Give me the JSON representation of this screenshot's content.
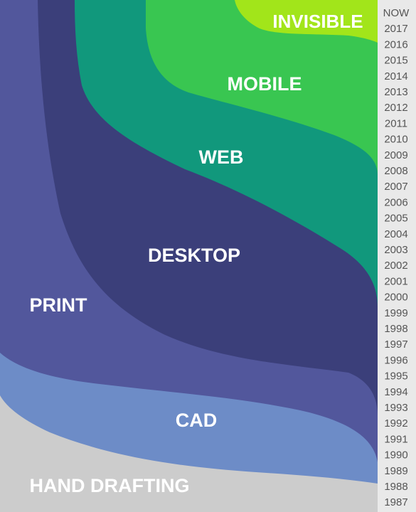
{
  "bands": [
    {
      "key": "hand_drafting",
      "label": "HAND DRAFTING",
      "color": "#cccccc"
    },
    {
      "key": "cad",
      "label": "CAD",
      "color": "#6d8cc7"
    },
    {
      "key": "print",
      "label": "PRINT",
      "color": "#52579c"
    },
    {
      "key": "desktop",
      "label": "DESKTOP",
      "color": "#3b3f7a"
    },
    {
      "key": "web",
      "label": "WEB",
      "color": "#11987c"
    },
    {
      "key": "mobile",
      "label": "MOBILE",
      "color": "#39c651"
    },
    {
      "key": "invisible",
      "label": "INVISIBLE",
      "color": "#a2e51a"
    }
  ],
  "years": [
    "NOW",
    "2017",
    "2016",
    "2015",
    "2014",
    "2013",
    "2012",
    "2011",
    "2010",
    "2009",
    "2008",
    "2007",
    "2006",
    "2005",
    "2004",
    "2003",
    "2002",
    "2001",
    "2000",
    "1999",
    "1998",
    "1997",
    "1996",
    "1995",
    "1994",
    "1993",
    "1992",
    "1991",
    "1990",
    "1989",
    "1988",
    "1987"
  ],
  "axis_color": "#e9e9e9"
}
